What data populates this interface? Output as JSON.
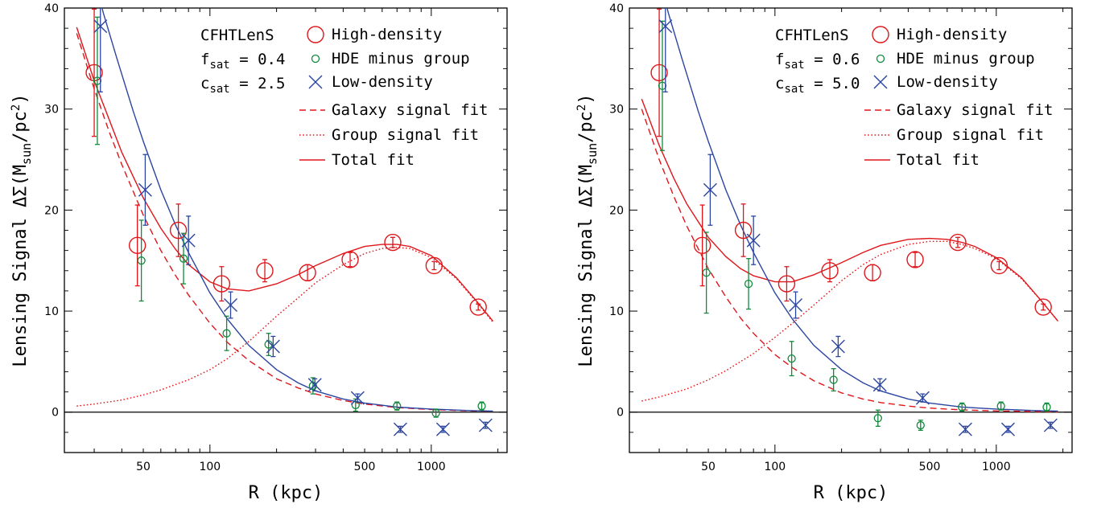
{
  "chart_data": [
    {
      "type": "scatter",
      "xlabel": "R (kpc)",
      "ylabel": "Lensing Signal ΔΣ(M_sun/pc²)",
      "xscale": "log",
      "xlim": [
        22,
        2200
      ],
      "ylim": [
        -4,
        40
      ],
      "xticks": [
        50,
        100,
        500,
        1000
      ],
      "yticks": [
        0,
        10,
        20,
        30,
        40
      ],
      "zero_line": true,
      "annotations": [
        {
          "text": "CFHTLenS"
        },
        {
          "text": "f",
          "sub": "sat",
          "rest": " = 0.4"
        },
        {
          "text": "c",
          "sub": "sat",
          "rest": " = 2.5"
        }
      ],
      "legend": {
        "placement": "top-right",
        "markers": [
          {
            "label": "High-density",
            "symbol": "big-circle",
            "color": "#e0161b"
          },
          {
            "label": "HDE minus group",
            "symbol": "small-circle",
            "color": "#118a3b"
          },
          {
            "label": "Low-density",
            "symbol": "cross",
            "color": "#2b45a0"
          }
        ],
        "lines": [
          {
            "label": "Galaxy signal fit",
            "style": "dashed",
            "color": "#e0161b"
          },
          {
            "label": "Group signal fit",
            "style": "dotted",
            "color": "#e0161b"
          },
          {
            "label": "Total fit",
            "style": "solid",
            "color": "#e0161b"
          }
        ]
      },
      "series": [
        {
          "name": "High-density",
          "symbol": "big-circle",
          "color": "#e0161b",
          "points": [
            {
              "x": 30,
              "y": 33.6,
              "err": 6.3
            },
            {
              "x": 47,
              "y": 16.5,
              "err": 4.0
            },
            {
              "x": 72,
              "y": 18.0,
              "err": 2.6
            },
            {
              "x": 113,
              "y": 12.7,
              "err": 1.7
            },
            {
              "x": 177,
              "y": 14.0,
              "err": 1.1
            },
            {
              "x": 276,
              "y": 13.8,
              "err": 0.8
            },
            {
              "x": 430,
              "y": 15.1,
              "err": 0.7
            },
            {
              "x": 670,
              "y": 16.8,
              "err": 0.5
            },
            {
              "x": 1030,
              "y": 14.5,
              "err": 0.4
            },
            {
              "x": 1630,
              "y": 10.4,
              "err": 0.3
            }
          ]
        },
        {
          "name": "HDE minus group",
          "symbol": "small-circle",
          "color": "#118a3b",
          "points": [
            {
              "x": 31,
              "y": 32.8,
              "err": 6.3
            },
            {
              "x": 49,
              "y": 15.0,
              "err": 4.0
            },
            {
              "x": 76,
              "y": 15.2,
              "err": 2.5
            },
            {
              "x": 119,
              "y": 7.8,
              "err": 1.7
            },
            {
              "x": 184,
              "y": 6.7,
              "err": 1.1
            },
            {
              "x": 292,
              "y": 2.6,
              "err": 0.8
            },
            {
              "x": 455,
              "y": 0.7,
              "err": 0.6
            },
            {
              "x": 700,
              "y": 0.6,
              "err": 0.4
            },
            {
              "x": 1050,
              "y": -0.1,
              "err": 0.4
            },
            {
              "x": 1690,
              "y": 0.6,
              "err": 0.4
            }
          ]
        },
        {
          "name": "Low-density",
          "symbol": "cross",
          "color": "#2b45a0",
          "points": [
            {
              "x": 32,
              "y": 38.2,
              "err": 6.5
            },
            {
              "x": 51,
              "y": 22.0,
              "err": 3.5
            },
            {
              "x": 80,
              "y": 17.0,
              "err": 2.4
            },
            {
              "x": 124,
              "y": 10.6,
              "err": 1.3
            },
            {
              "x": 193,
              "y": 6.5,
              "err": 1.0
            },
            {
              "x": 298,
              "y": 2.7,
              "err": 0.6
            },
            {
              "x": 465,
              "y": 1.4,
              "err": 0.4
            },
            {
              "x": 725,
              "y": -1.7,
              "err": 0.3
            },
            {
              "x": 1130,
              "y": -1.7,
              "err": 0.3
            },
            {
              "x": 1760,
              "y": -1.3,
              "err": 0.3
            }
          ]
        }
      ],
      "fit_lines": [
        {
          "name": "Galaxy signal fit",
          "style": "dashed",
          "color": "#e0161b",
          "x": [
            25,
            30,
            35,
            40,
            50,
            60,
            70,
            80,
            100,
            120,
            150,
            200,
            250,
            300,
            400,
            500,
            700,
            1000,
            1500,
            1900
          ],
          "y": [
            37.5,
            32.0,
            27.8,
            24.5,
            19.5,
            16.0,
            13.5,
            11.6,
            8.8,
            6.9,
            5.1,
            3.3,
            2.4,
            1.8,
            1.15,
            0.8,
            0.45,
            0.25,
            0.12,
            0.08
          ]
        },
        {
          "name": "Group signal fit",
          "style": "dotted",
          "color": "#e0161b",
          "x": [
            25,
            30,
            40,
            50,
            60,
            80,
            100,
            120,
            150,
            200,
            250,
            300,
            400,
            500,
            600,
            700,
            800,
            1000,
            1300,
            1600,
            1900
          ],
          "y": [
            0.6,
            0.8,
            1.2,
            1.7,
            2.2,
            3.2,
            4.2,
            5.3,
            7.0,
            9.5,
            11.3,
            12.8,
            14.6,
            15.7,
            16.2,
            16.3,
            16.2,
            15.3,
            13.2,
            10.9,
            8.9
          ]
        },
        {
          "name": "Total fit",
          "style": "solid",
          "color": "#e0161b",
          "x": [
            25,
            30,
            35,
            40,
            50,
            60,
            70,
            80,
            100,
            120,
            150,
            200,
            250,
            300,
            400,
            500,
            600,
            700,
            800,
            1000,
            1300,
            1600,
            1900
          ],
          "y": [
            38.1,
            32.8,
            29.0,
            25.7,
            21.2,
            18.2,
            16.1,
            14.6,
            12.9,
            12.2,
            12.0,
            12.7,
            13.6,
            14.5,
            15.7,
            16.4,
            16.6,
            16.6,
            16.4,
            15.5,
            13.3,
            11.0,
            9.0
          ]
        },
        {
          "name": "Low-density fit",
          "style": "solid",
          "color": "#2b45a0",
          "x": [
            30,
            33,
            38,
            45,
            50,
            60,
            70,
            80,
            100,
            120,
            150,
            200,
            250,
            300,
            400,
            500,
            700,
            1000,
            1500,
            1900
          ],
          "y": [
            43.0,
            39.5,
            35.0,
            29.8,
            26.8,
            22.0,
            18.5,
            15.8,
            11.8,
            9.2,
            6.6,
            4.2,
            2.9,
            2.1,
            1.3,
            0.9,
            0.5,
            0.3,
            0.15,
            0.1
          ]
        }
      ]
    },
    {
      "type": "scatter",
      "xlabel": "R (kpc)",
      "ylabel": "Lensing Signal ΔΣ(M_sun/pc²)",
      "xscale": "log",
      "xlim": [
        22,
        2200
      ],
      "ylim": [
        -4,
        40
      ],
      "xticks": [
        50,
        100,
        500,
        1000
      ],
      "yticks": [
        0,
        10,
        20,
        30,
        40
      ],
      "zero_line": true,
      "annotations": [
        {
          "text": "CFHTLenS"
        },
        {
          "text": "f",
          "sub": "sat",
          "rest": " = 0.6"
        },
        {
          "text": "c",
          "sub": "sat",
          "rest": " = 5.0"
        }
      ],
      "legend": {
        "placement": "top-right",
        "markers": [
          {
            "label": "High-density",
            "symbol": "big-circle",
            "color": "#e0161b"
          },
          {
            "label": "HDE minus group",
            "symbol": "small-circle",
            "color": "#118a3b"
          },
          {
            "label": "Low-density",
            "symbol": "cross",
            "color": "#2b45a0"
          }
        ],
        "lines": [
          {
            "label": "Galaxy signal fit",
            "style": "dashed",
            "color": "#e0161b"
          },
          {
            "label": "Group signal fit",
            "style": "dotted",
            "color": "#e0161b"
          },
          {
            "label": "Total fit",
            "style": "solid",
            "color": "#e0161b"
          }
        ]
      },
      "series": [
        {
          "name": "High-density",
          "symbol": "big-circle",
          "color": "#e0161b",
          "points": [
            {
              "x": 30,
              "y": 33.6,
              "err": 6.3
            },
            {
              "x": 47,
              "y": 16.5,
              "err": 4.0
            },
            {
              "x": 72,
              "y": 18.0,
              "err": 2.6
            },
            {
              "x": 113,
              "y": 12.7,
              "err": 1.7
            },
            {
              "x": 177,
              "y": 14.0,
              "err": 1.1
            },
            {
              "x": 276,
              "y": 13.8,
              "err": 0.8
            },
            {
              "x": 430,
              "y": 15.1,
              "err": 0.7
            },
            {
              "x": 670,
              "y": 16.8,
              "err": 0.5
            },
            {
              "x": 1030,
              "y": 14.5,
              "err": 0.4
            },
            {
              "x": 1630,
              "y": 10.4,
              "err": 0.3
            }
          ]
        },
        {
          "name": "HDE minus group",
          "symbol": "small-circle",
          "color": "#118a3b",
          "points": [
            {
              "x": 31,
              "y": 32.3,
              "err": 6.4
            },
            {
              "x": 49,
              "y": 13.8,
              "err": 4.0
            },
            {
              "x": 76,
              "y": 12.7,
              "err": 2.5
            },
            {
              "x": 119,
              "y": 5.3,
              "err": 1.7
            },
            {
              "x": 184,
              "y": 3.2,
              "err": 1.1
            },
            {
              "x": 292,
              "y": -0.6,
              "err": 0.8
            },
            {
              "x": 455,
              "y": -1.3,
              "err": 0.5
            },
            {
              "x": 700,
              "y": 0.5,
              "err": 0.4
            },
            {
              "x": 1050,
              "y": 0.6,
              "err": 0.4
            },
            {
              "x": 1690,
              "y": 0.5,
              "err": 0.4
            }
          ]
        },
        {
          "name": "Low-density",
          "symbol": "cross",
          "color": "#2b45a0",
          "points": [
            {
              "x": 32,
              "y": 38.2,
              "err": 6.5
            },
            {
              "x": 51,
              "y": 22.0,
              "err": 3.5
            },
            {
              "x": 80,
              "y": 17.0,
              "err": 2.4
            },
            {
              "x": 124,
              "y": 10.6,
              "err": 1.3
            },
            {
              "x": 193,
              "y": 6.5,
              "err": 1.0
            },
            {
              "x": 298,
              "y": 2.7,
              "err": 0.6
            },
            {
              "x": 465,
              "y": 1.4,
              "err": 0.4
            },
            {
              "x": 725,
              "y": -1.7,
              "err": 0.3
            },
            {
              "x": 1130,
              "y": -1.7,
              "err": 0.3
            },
            {
              "x": 1760,
              "y": -1.3,
              "err": 0.3
            }
          ]
        }
      ],
      "fit_lines": [
        {
          "name": "Galaxy signal fit",
          "style": "dashed",
          "color": "#e0161b",
          "x": [
            25,
            30,
            35,
            40,
            50,
            60,
            70,
            80,
            100,
            120,
            150,
            200,
            250,
            300,
            400,
            500,
            700,
            1000,
            1500,
            1900
          ],
          "y": [
            30.0,
            25.0,
            21.3,
            18.4,
            14.2,
            11.4,
            9.3,
            7.8,
            5.7,
            4.4,
            3.1,
            1.9,
            1.3,
            0.95,
            0.6,
            0.4,
            0.22,
            0.12,
            0.06,
            0.04
          ]
        },
        {
          "name": "Group signal fit",
          "style": "dotted",
          "color": "#e0161b",
          "x": [
            25,
            30,
            40,
            50,
            60,
            80,
            100,
            120,
            150,
            200,
            250,
            300,
            400,
            500,
            600,
            700,
            800,
            1000,
            1300,
            1600,
            1900
          ],
          "y": [
            1.1,
            1.5,
            2.3,
            3.2,
            4.1,
            5.8,
            7.4,
            8.8,
            10.6,
            13.0,
            14.6,
            15.6,
            16.6,
            16.9,
            16.9,
            16.6,
            16.2,
            15.2,
            13.2,
            11.0,
            9.0
          ]
        },
        {
          "name": "Total fit",
          "style": "solid",
          "color": "#e0161b",
          "x": [
            25,
            30,
            35,
            40,
            50,
            60,
            70,
            80,
            100,
            120,
            150,
            200,
            250,
            300,
            400,
            500,
            600,
            700,
            800,
            1000,
            1300,
            1600,
            1900
          ],
          "y": [
            31.0,
            26.4,
            23.1,
            20.6,
            17.3,
            15.4,
            14.2,
            13.5,
            12.9,
            12.9,
            13.6,
            14.8,
            15.8,
            16.5,
            17.1,
            17.2,
            17.1,
            16.8,
            16.4,
            15.3,
            13.3,
            11.0,
            9.0
          ]
        },
        {
          "name": "Low-density fit",
          "style": "solid",
          "color": "#2b45a0",
          "x": [
            30,
            33,
            38,
            45,
            50,
            60,
            70,
            80,
            100,
            120,
            150,
            200,
            250,
            300,
            400,
            500,
            700,
            1000,
            1500,
            1900
          ],
          "y": [
            43.0,
            39.5,
            35.0,
            29.8,
            26.8,
            22.0,
            18.5,
            15.8,
            11.8,
            9.2,
            6.6,
            4.2,
            2.9,
            2.1,
            1.3,
            0.9,
            0.5,
            0.3,
            0.15,
            0.1
          ]
        }
      ]
    }
  ]
}
